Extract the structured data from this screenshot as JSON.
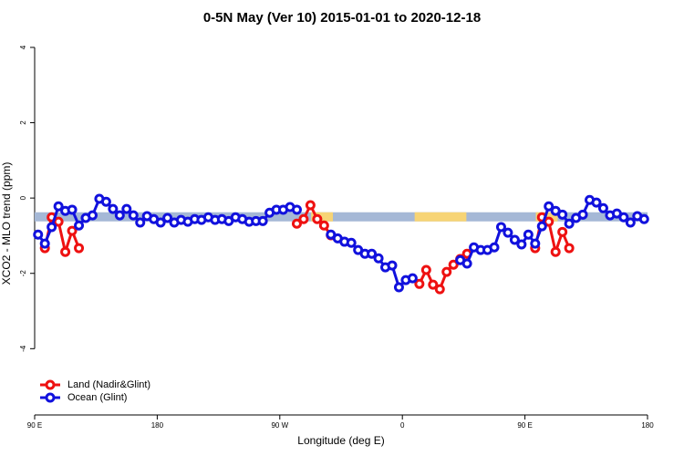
{
  "chart_data": {
    "type": "line",
    "title": "0-5N May (Ver 10)   2015-01-01 to 2020-12-18",
    "xlabel": "Longitude (deg E)",
    "ylabel": "XCO2 - MLO trend (ppm)",
    "xlim": [
      90,
      540
    ],
    "ylim": [
      -5.76,
      4.29
    ],
    "xticks": [
      {
        "value": 90,
        "label": "90 E"
      },
      {
        "value": 180,
        "label": "180"
      },
      {
        "value": 270,
        "label": "90 W"
      },
      {
        "value": 360,
        "label": "0"
      },
      {
        "value": 450,
        "label": "90 E"
      },
      {
        "value": 540,
        "label": "180"
      }
    ],
    "yticks": [
      -4,
      -2,
      0,
      2,
      4
    ],
    "legend": "bottom-left",
    "band": {
      "y": -0.5,
      "color": "#a5b8d6",
      "segments": [
        {
          "from": 293,
          "to": 309,
          "color": "#f7d475"
        },
        {
          "from": 369,
          "to": 407,
          "color": "#f7d475"
        },
        {
          "from": 458,
          "to": 474,
          "color": "#f7d475"
        }
      ]
    },
    "x": [
      92.5,
      97.5,
      102.5,
      107.5,
      112.5,
      117.5,
      122.5,
      127.5,
      132.5,
      137.5,
      142.5,
      147.5,
      152.5,
      157.5,
      162.5,
      167.5,
      172.5,
      177.5,
      182.5,
      187.5,
      192.5,
      197.5,
      202.5,
      207.5,
      212.5,
      217.5,
      222.5,
      227.5,
      232.5,
      237.5,
      242.5,
      247.5,
      252.5,
      257.5,
      262.5,
      267.5,
      272.5,
      277.5,
      282.5,
      287.5,
      292.5,
      297.5,
      302.5,
      307.5,
      312.5,
      317.5,
      322.5,
      327.5,
      332.5,
      337.5,
      342.5,
      347.5,
      352.5,
      357.5,
      362.5,
      367.5,
      372.5,
      377.5,
      382.5,
      387.5,
      392.5,
      397.5,
      402.5,
      407.5,
      412.5,
      417.5,
      422.5,
      427.5,
      432.5,
      437.5,
      442.5,
      447.5,
      452.5,
      457.5,
      462.5,
      467.5,
      472.5,
      477.5,
      482.5,
      487.5,
      492.5,
      497.5,
      502.5,
      507.5,
      512.5,
      517.5,
      522.5,
      527.5,
      532.5,
      537.5
    ],
    "series": [
      {
        "name": "Land (Nadir&Glint)",
        "color": "#ee1111",
        "values": [
          null,
          -1.33,
          -0.51,
          -0.63,
          -1.43,
          -0.87,
          -1.33,
          null,
          null,
          null,
          null,
          null,
          null,
          null,
          null,
          null,
          null,
          null,
          null,
          null,
          null,
          null,
          null,
          null,
          null,
          null,
          null,
          null,
          null,
          null,
          null,
          null,
          null,
          null,
          null,
          null,
          null,
          null,
          -0.68,
          -0.56,
          -0.19,
          -0.56,
          -0.73,
          -0.99,
          null,
          null,
          null,
          null,
          null,
          null,
          null,
          null,
          null,
          null,
          null,
          null,
          -2.28,
          -1.91,
          -2.3,
          -2.42,
          -1.96,
          -1.77,
          -1.62,
          -1.48,
          null,
          null,
          null,
          null,
          null,
          null,
          null,
          null,
          null,
          -1.33,
          -0.51,
          -0.63,
          -1.43,
          -0.9,
          -1.33,
          null,
          null,
          null,
          null,
          null,
          null,
          null,
          null,
          null,
          null,
          null
        ]
      },
      {
        "name": "Ocean (Glint)",
        "color": "#1111dd",
        "values": [
          -0.97,
          -1.21,
          -0.77,
          -0.22,
          -0.34,
          -0.31,
          -0.73,
          -0.53,
          -0.46,
          -0.02,
          -0.1,
          -0.29,
          -0.46,
          -0.29,
          -0.46,
          -0.65,
          -0.48,
          -0.56,
          -0.65,
          -0.53,
          -0.65,
          -0.58,
          -0.63,
          -0.56,
          -0.58,
          -0.51,
          -0.58,
          -0.56,
          -0.61,
          -0.51,
          -0.56,
          -0.63,
          -0.61,
          -0.61,
          -0.39,
          -0.31,
          -0.31,
          -0.24,
          -0.31,
          null,
          null,
          null,
          null,
          -0.97,
          -1.07,
          -1.16,
          -1.19,
          -1.38,
          -1.48,
          -1.48,
          -1.6,
          -1.84,
          -1.79,
          -2.37,
          -2.18,
          -2.13,
          null,
          null,
          null,
          null,
          null,
          null,
          -1.65,
          -1.74,
          -1.31,
          -1.38,
          -1.38,
          -1.31,
          -0.77,
          -0.92,
          -1.11,
          -1.23,
          -0.97,
          -1.21,
          -0.75,
          -0.22,
          -0.34,
          -0.44,
          -0.68,
          -0.53,
          -0.44,
          -0.05,
          -0.12,
          -0.27,
          -0.46,
          -0.41,
          -0.51,
          -0.65,
          -0.48,
          -0.56
        ]
      }
    ]
  }
}
